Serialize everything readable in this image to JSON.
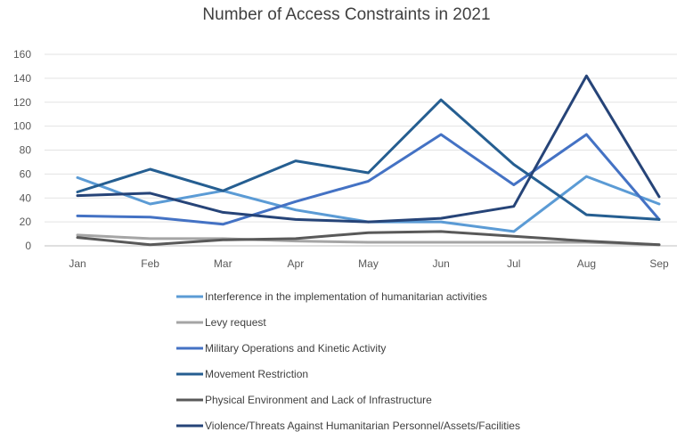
{
  "chart_data": {
    "type": "line",
    "title": "Number of Access Constraints in 2021",
    "xlabel": "",
    "ylabel": "",
    "categories": [
      "Jan",
      "Feb",
      "Mar",
      "Apr",
      "May",
      "Jun",
      "Jul",
      "Aug",
      "Sep"
    ],
    "ylim": [
      0,
      160
    ],
    "yticks": [
      "0",
      "20",
      "40",
      "60",
      "80",
      "100",
      "120",
      "140",
      "160"
    ],
    "grid": true,
    "legend_position": "bottom",
    "series": [
      {
        "name": "Interference in the implementation of humanitarian activities",
        "color": "#5b9bd5",
        "values": [
          57,
          35,
          46,
          30,
          20,
          20,
          12,
          58,
          35
        ]
      },
      {
        "name": "Levy request",
        "color": "#a5a5a5",
        "values": [
          9,
          6,
          6,
          4,
          3,
          3,
          3,
          3,
          1
        ]
      },
      {
        "name": "Military Operations and Kinetic Activity",
        "color": "#4472c4",
        "values": [
          25,
          24,
          18,
          37,
          54,
          93,
          51,
          93,
          22
        ]
      },
      {
        "name": "Movement Restriction",
        "color": "#255e91",
        "values": [
          45,
          64,
          46,
          71,
          61,
          122,
          68,
          26,
          22
        ]
      },
      {
        "name": "Physical Environment and Lack of Infrastructure",
        "color": "#595959",
        "values": [
          7,
          1,
          5,
          6,
          11,
          12,
          8,
          4,
          1
        ]
      },
      {
        "name": "Violence/Threats Against Humanitarian Personnel/Assets/Facilities",
        "color": "#264478",
        "values": [
          42,
          44,
          28,
          22,
          20,
          23,
          33,
          142,
          41
        ]
      }
    ]
  }
}
